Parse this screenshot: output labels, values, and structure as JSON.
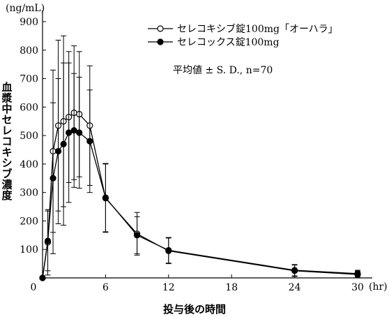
{
  "chart_data": {
    "type": "line",
    "title": "",
    "xlabel": "投与後の時間",
    "x_unit": "(hr)",
    "ylabel": "血漿中セレコキシブ濃度",
    "y_unit": "(ng/mL)",
    "xlim": [
      0,
      31
    ],
    "ylim": [
      0,
      920
    ],
    "x_ticks": [
      0,
      6,
      12,
      18,
      24,
      30
    ],
    "y_ticks": [
      100,
      200,
      300,
      400,
      500,
      600,
      700,
      800,
      900
    ],
    "grid": false,
    "legend_position": "top-right",
    "annotation": "平均値 ± S. D., n=70",
    "series": [
      {
        "name": "セレコキシブ錠100mg「オーハラ」",
        "marker": "open-circle",
        "color": "#000000",
        "x": [
          0,
          0.5,
          1,
          1.5,
          2,
          2.5,
          3,
          3.5,
          4.5,
          6,
          9,
          12,
          24,
          30
        ],
        "y": [
          0,
          125,
          445,
          535,
          550,
          565,
          580,
          575,
          535,
          280,
          155,
          95,
          25,
          12
        ],
        "sd": [
          0,
          115,
          285,
          300,
          300,
          230,
          235,
          220,
          210,
          120,
          75,
          45,
          20,
          12
        ]
      },
      {
        "name": "セレコックス錠100mg",
        "marker": "filled-circle",
        "color": "#000000",
        "x": [
          0,
          0.5,
          1,
          1.5,
          2,
          2.5,
          3,
          3.5,
          4.5,
          6,
          9,
          12,
          24,
          30
        ],
        "y": [
          0,
          130,
          350,
          445,
          470,
          510,
          518,
          510,
          480,
          282,
          150,
          97,
          27,
          15
        ],
        "sd": [
          0,
          105,
          265,
          255,
          285,
          245,
          200,
          195,
          180,
          120,
          65,
          45,
          20,
          12
        ]
      }
    ]
  }
}
